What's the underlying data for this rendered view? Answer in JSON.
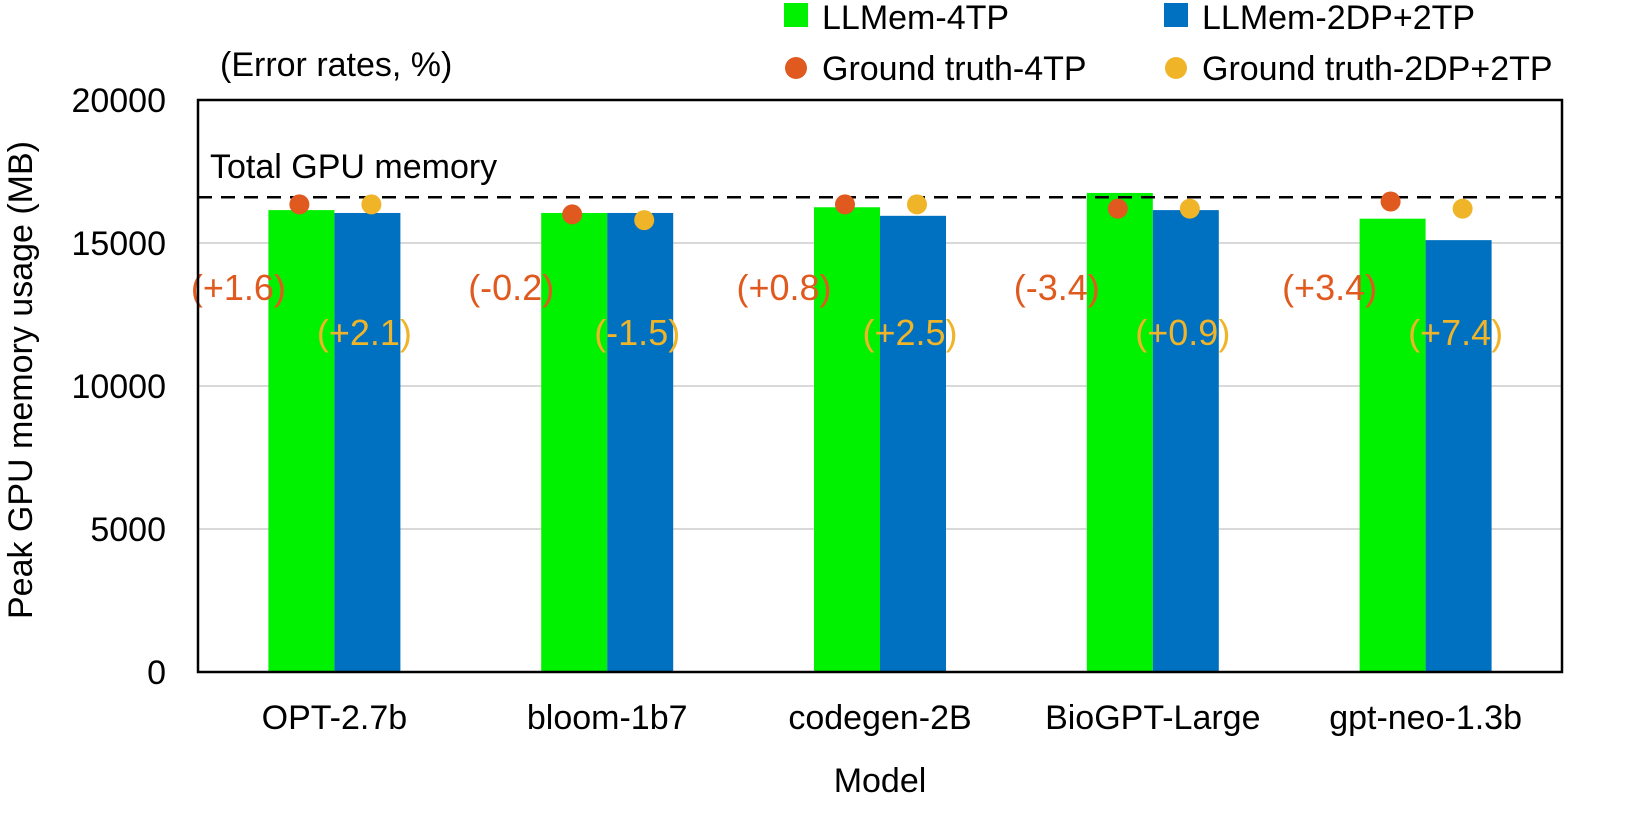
{
  "chart_data": {
    "type": "bar",
    "title": "",
    "xlabel": "Model",
    "ylabel": "Peak GPU memory usage (MB)",
    "ylim": [
      0,
      20000
    ],
    "yticks": [
      0,
      5000,
      10000,
      15000,
      20000
    ],
    "grid": "horizontal",
    "categories": [
      "OPT-2.7b",
      "bloom-1b7",
      "codegen-2B",
      "BioGPT-Large",
      "gpt-neo-1.3b"
    ],
    "series": [
      {
        "name": "LLMem-4TP",
        "kind": "bar",
        "color": "#00f200",
        "values": [
          16150,
          16050,
          16250,
          16750,
          15850
        ]
      },
      {
        "name": "LLMem-2DP+2TP",
        "kind": "bar",
        "color": "#0070c0",
        "values": [
          16050,
          16050,
          15950,
          16150,
          15100
        ]
      },
      {
        "name": "Ground truth-4TP",
        "kind": "point",
        "color": "#e05a1f",
        "values": [
          16350,
          16000,
          16350,
          16200,
          16450
        ]
      },
      {
        "name": "Ground truth-2DP+2TP",
        "kind": "point",
        "color": "#f0b429",
        "values": [
          16350,
          15800,
          16350,
          16200,
          16200
        ]
      }
    ],
    "error_rates_note": "(Error rates, %)",
    "error_rates": {
      "4TP": [
        "(+1.6)",
        "(-0.2)",
        "(+0.8)",
        "(-3.4)",
        "(+3.4)"
      ],
      "2DP+2TP": [
        "(+2.1)",
        "(-1.5)",
        "(+2.5)",
        "(+0.9)",
        "(+7.4)"
      ]
    },
    "reference_line": {
      "label": "Total GPU memory",
      "value": 16600,
      "style": "dashed"
    },
    "legend_position": "top-right"
  }
}
